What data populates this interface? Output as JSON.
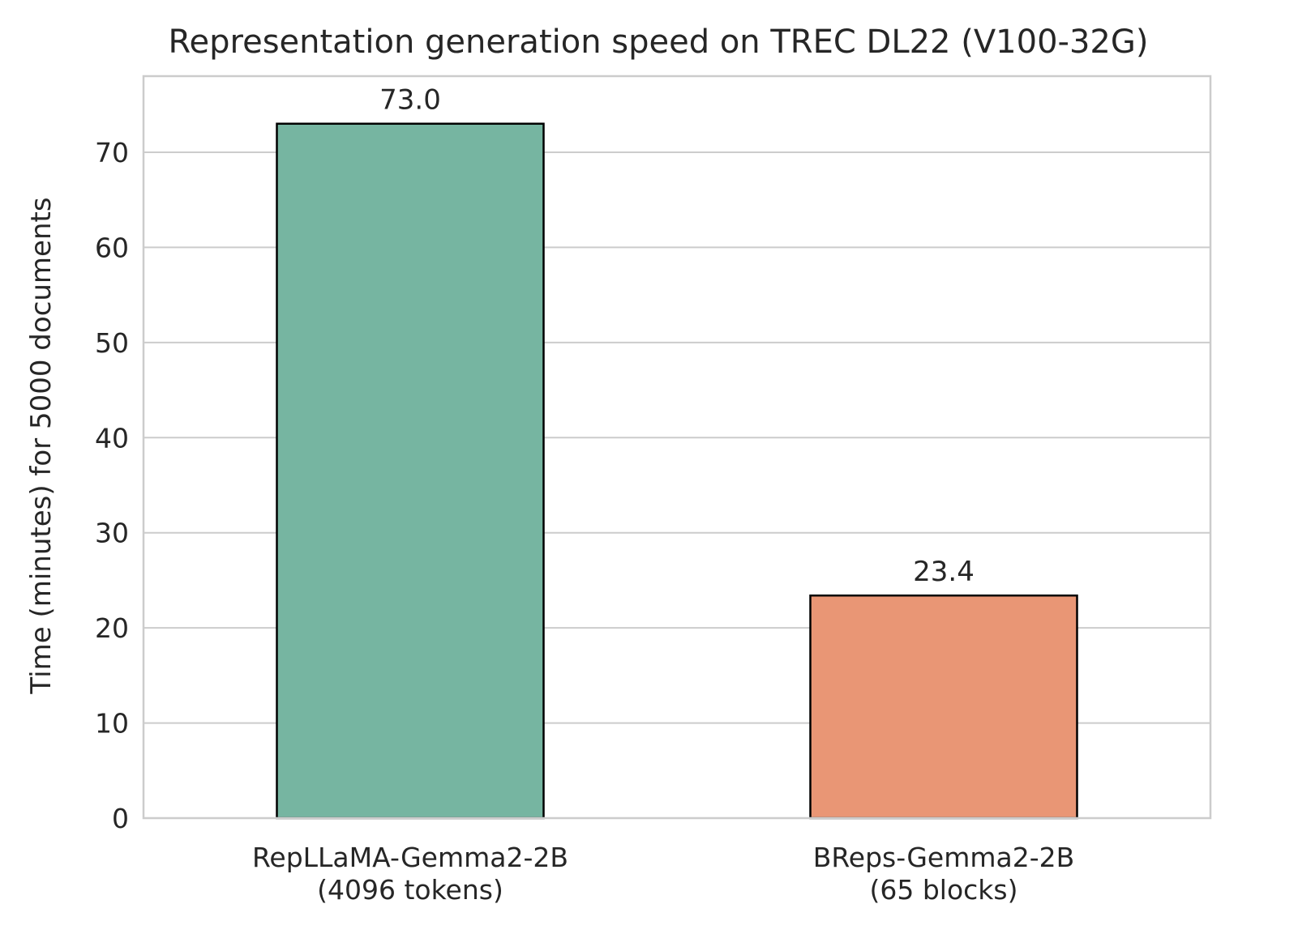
{
  "chart_data": {
    "type": "bar",
    "title": "Representation generation speed on TREC DL22 (V100-32G)",
    "xlabel": "",
    "ylabel": "Time (minutes) for 5000 documents",
    "ylim": [
      0,
      78
    ],
    "yticks": [
      0,
      10,
      20,
      30,
      40,
      50,
      60,
      70
    ],
    "grid": true,
    "categories": [
      [
        "RepLLaMA-Gemma2-2B",
        "(4096 tokens)"
      ],
      [
        "BReps-Gemma2-2B",
        "(65 blocks)"
      ]
    ],
    "values": [
      73.0,
      23.4
    ],
    "data_labels": [
      "73.0",
      "23.4"
    ],
    "colors": [
      "#76b5a1",
      "#e99675"
    ]
  }
}
